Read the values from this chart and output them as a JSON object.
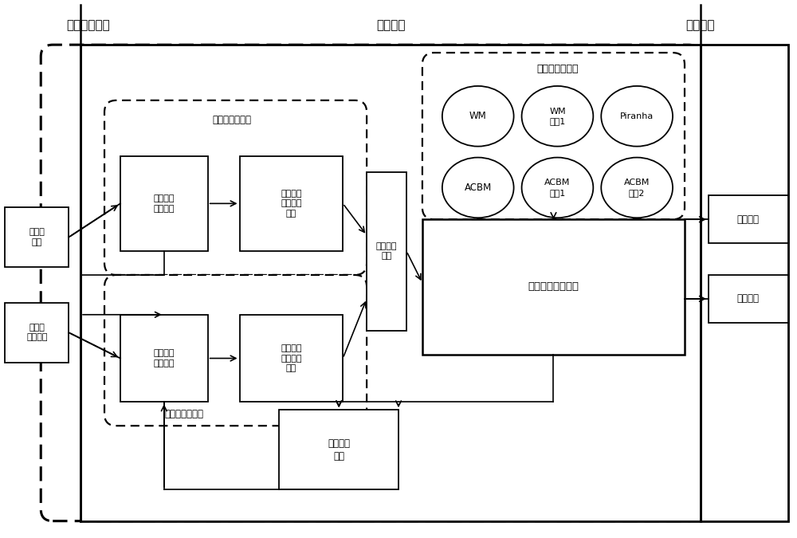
{
  "bg": "#ffffff",
  "labels": {
    "config_layer": "配置管理层面",
    "control_layer": "控制层面",
    "service_layer": "服务层面",
    "static_adapt": "静态自适应模块",
    "dynamic_adapt": "动态自适应模块",
    "match_lib": "匹配算法库模块",
    "rule_tree": "规则树\n配置",
    "adapt_config": "自适应\n配置文件",
    "static_feat": "静态特征\n统计模块",
    "static_algo": "静态算法\n选择决策\n模块",
    "dynamic_feat": "动态特征\n统计模块",
    "dynamic_algo": "动态算法\n选择决策\n模块",
    "algo_schedule": "算法调度\n模块",
    "algo_call": "算法统一调用模块",
    "feedback": "反馈事件\n队列",
    "match_text": "匹配文本",
    "match_result": "匹配结果",
    "wm": "WM",
    "wm_imp": "WM\n改进1",
    "piranha": "Piranha",
    "acbm": "ACBM",
    "acbm_imp1": "ACBM\n改进1",
    "acbm_imp2": "ACBM\n改进2"
  }
}
